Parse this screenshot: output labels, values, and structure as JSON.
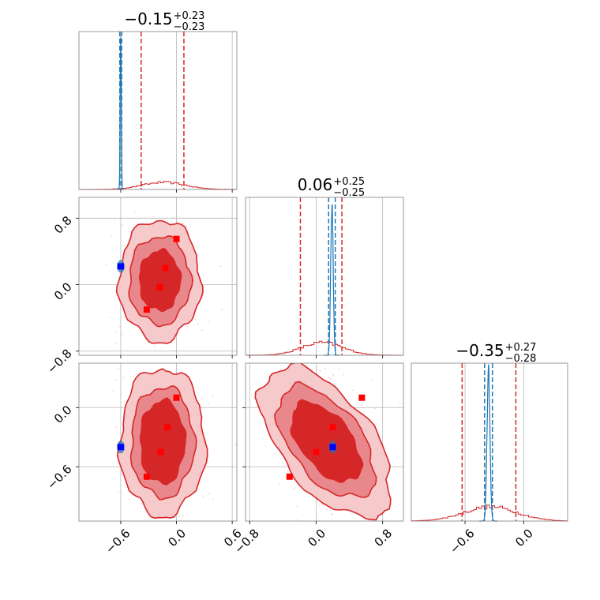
{
  "chart_data": {
    "type": "corner",
    "colors": {
      "red": "#d62728",
      "red_fill_outer": "#f6c9cb",
      "red_fill_mid": "#e9888c",
      "red_fill_inner": "#d62728",
      "blue": "#1f77b4",
      "marker_blue": "#0000ff",
      "marker_red": "#ff0000",
      "scatter_pink": "#f4a6b8"
    },
    "parameters": [
      {
        "range": [
          -1.05,
          0.65
        ],
        "tick_values": [
          -0.6,
          0.0,
          0.6
        ],
        "tick_labels": [
          "−0.6",
          "0.0",
          "0.6"
        ]
      },
      {
        "range": [
          -0.85,
          1.05
        ],
        "tick_values": [
          -0.8,
          0.0,
          0.8
        ],
        "tick_labels": [
          "−0.8",
          "0.0",
          "0.8"
        ]
      },
      {
        "range": [
          -1.15,
          0.45
        ],
        "tick_values": [
          -0.6,
          0.0
        ],
        "tick_labels": [
          "−0.6",
          "0.0"
        ]
      }
    ],
    "titles": [
      {
        "value": "−0.15",
        "plus": "+0.23",
        "minus": "−0.23"
      },
      {
        "value": "0.06",
        "plus": "+0.25",
        "minus": "−0.25"
      },
      {
        "value": "−0.35",
        "plus": "+0.27",
        "minus": "−0.28"
      }
    ],
    "marginals": [
      {
        "red_quantiles": [
          -0.38,
          0.08
        ],
        "blue_quantiles": [
          -0.61,
          -0.59
        ],
        "red_hist": {
          "mean": -0.15,
          "sd": 0.23,
          "peak": 0.045
        },
        "blue_hist": {
          "mean": -0.6,
          "sd": 0.006,
          "peak": 1.0
        }
      },
      {
        "red_quantiles": [
          -0.19,
          0.31
        ],
        "blue_quantiles": [
          0.15,
          0.23
        ],
        "red_hist": {
          "mean": 0.06,
          "sd": 0.25,
          "peak": 0.08
        },
        "blue_hist": {
          "mean": 0.19,
          "sd": 0.015,
          "peak": 1.0
        }
      },
      {
        "red_quantiles": [
          -0.63,
          -0.08
        ],
        "blue_quantiles": [
          -0.4,
          -0.32
        ],
        "red_hist": {
          "mean": -0.35,
          "sd": 0.27,
          "peak": 0.09
        },
        "blue_hist": {
          "mean": -0.36,
          "sd": 0.015,
          "peak": 1.0
        }
      }
    ],
    "pairs": [
      {
        "x_param": 0,
        "y_param": 1,
        "contours": {
          "center": [
            -0.18,
            0.05
          ],
          "levels": [
            {
              "rx": 0.44,
              "ry": 0.73
            },
            {
              "rx": 0.33,
              "ry": 0.53
            },
            {
              "rx": 0.22,
              "ry": 0.36
            }
          ]
        },
        "red_markers": [
          [
            0.0,
            0.55
          ],
          [
            -0.12,
            0.2
          ],
          [
            -0.18,
            -0.03
          ],
          [
            -0.32,
            -0.3
          ]
        ],
        "blue_markers": [
          [
            -0.6,
            0.22
          ]
        ]
      },
      {
        "x_param": 0,
        "y_param": 2,
        "contours": {
          "center": [
            -0.15,
            -0.35
          ],
          "levels": [
            {
              "rx": 0.46,
              "ry": 0.75
            },
            {
              "rx": 0.34,
              "ry": 0.56
            },
            {
              "rx": 0.24,
              "ry": 0.42
            }
          ]
        },
        "red_markers": [
          [
            0.0,
            0.1
          ],
          [
            -0.1,
            -0.2
          ],
          [
            -0.17,
            -0.45
          ],
          [
            -0.32,
            -0.7
          ]
        ],
        "blue_markers": [
          [
            -0.6,
            -0.4
          ]
        ]
      },
      {
        "x_param": 1,
        "y_param": 2,
        "contours": {
          "center": [
            0.12,
            -0.35
          ],
          "levels": [
            {
              "rx": 0.55,
              "ry": 0.9
            },
            {
              "rx": 0.42,
              "ry": 0.66
            },
            {
              "rx": 0.3,
              "ry": 0.47
            }
          ],
          "rotate_deg": -38
        },
        "red_markers": [
          [
            0.55,
            0.1
          ],
          [
            0.2,
            -0.2
          ],
          [
            0.0,
            -0.45
          ],
          [
            -0.32,
            -0.7
          ]
        ],
        "blue_markers": [
          [
            0.2,
            -0.4
          ]
        ]
      }
    ]
  }
}
